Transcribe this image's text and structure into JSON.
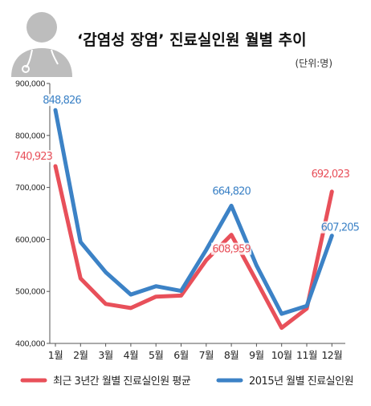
{
  "chart_data": {
    "type": "line",
    "title": "‘감염성 장염’ 진료실인원 월별 추이",
    "unit": "(단위:명)",
    "categories": [
      "1월",
      "2월",
      "3월",
      "4월",
      "5월",
      "6월",
      "7월",
      "8월",
      "9월",
      "10월",
      "11월",
      "12월"
    ],
    "ylim": [
      400000,
      900000
    ],
    "yticks": [
      400000,
      500000,
      600000,
      700000,
      800000,
      900000
    ],
    "ytick_labels": [
      "400,000",
      "500,000",
      "600,000",
      "700,000",
      "800,000",
      "900,000"
    ],
    "grid": false,
    "legend_position": "bottom",
    "series": [
      {
        "name": "최근 3년간 월별 진료실인원 평균",
        "color": "#e8505a",
        "values": [
          740923,
          525000,
          476000,
          468000,
          490000,
          492000,
          560000,
          608959,
          520000,
          430000,
          467000,
          692023
        ],
        "labels": [
          {
            "index": 0,
            "text": "740,923"
          },
          {
            "index": 7,
            "text": "608,959"
          },
          {
            "index": 11,
            "text": "692,023"
          }
        ]
      },
      {
        "name": "2015년 월별 진료실인원",
        "color": "#3c82c6",
        "values": [
          848826,
          595000,
          537000,
          494000,
          510000,
          501000,
          580000,
          664820,
          550000,
          457000,
          472000,
          607205
        ],
        "labels": [
          {
            "index": 0,
            "text": "848,826"
          },
          {
            "index": 7,
            "text": "664,820"
          },
          {
            "index": 11,
            "text": "607,205"
          }
        ]
      }
    ]
  },
  "icon": "doctor-avatar-icon"
}
